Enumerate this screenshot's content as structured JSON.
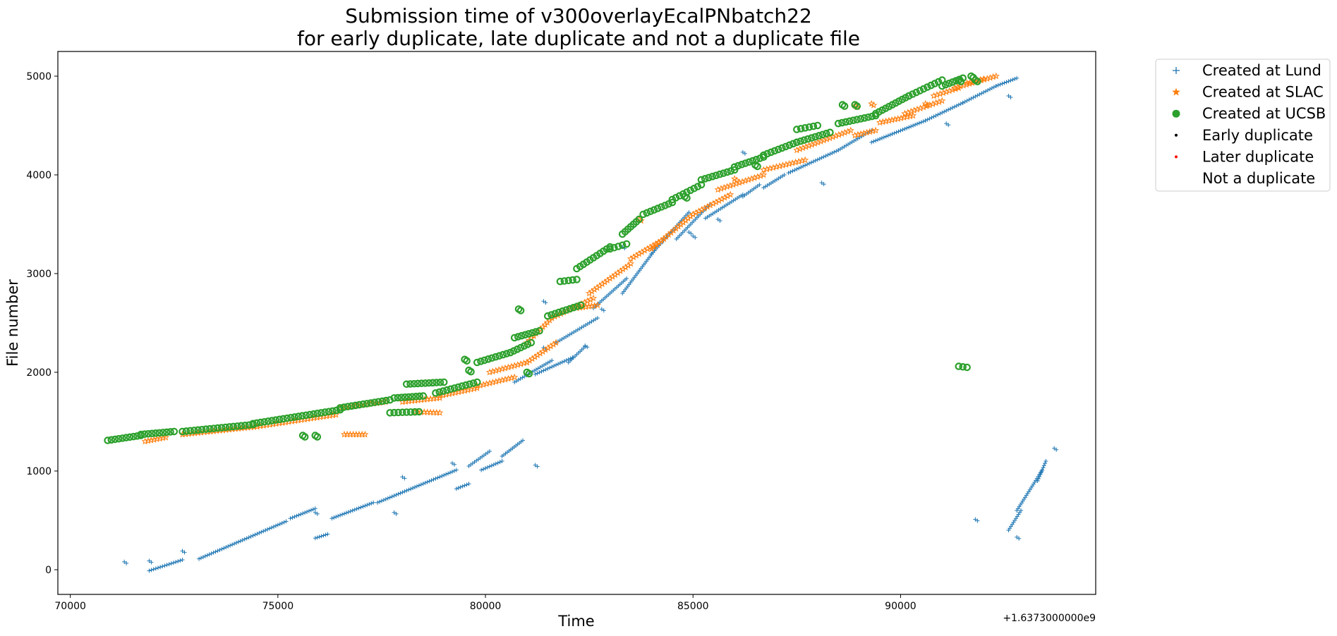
{
  "chart_data": {
    "type": "scatter",
    "title": [
      "Submission time of v300overlayEcalPNbatch22",
      "for early duplicate, late duplicate and not a duplicate file"
    ],
    "xlabel": "Time",
    "ylabel": "File number",
    "x_offset_label": "+1.6373000000e9",
    "xlim": [
      69700,
      94700
    ],
    "ylim": [
      -250,
      5250
    ],
    "xticks": [
      70000,
      75000,
      80000,
      85000,
      90000
    ],
    "yticks": [
      0,
      1000,
      2000,
      3000,
      4000,
      5000
    ],
    "grid": false,
    "legend_position": "outside-top-right",
    "legend": [
      {
        "label": "Created at Lund",
        "marker": "plus",
        "color": "#1f77b4"
      },
      {
        "label": "Created at SLAC",
        "marker": "star",
        "color": "#ff7f0e"
      },
      {
        "label": "Created at UCSB",
        "marker": "circle",
        "color": "#2ca02c"
      },
      {
        "label": "Early duplicate",
        "marker": "dot",
        "color": "#000000"
      },
      {
        "label": "Later duplicate",
        "marker": "dot",
        "color": "#ff0000"
      },
      {
        "label": "Not a duplicate",
        "marker": "none",
        "color": "#ffffff"
      }
    ],
    "series": [
      {
        "name": "Created at Lund",
        "marker": "plus",
        "color": "#1f77b4",
        "segments": [
          [
            [
              71900,
              -10
            ],
            [
              72700,
              100
            ]
          ],
          [
            [
              73100,
              110
            ],
            [
              75200,
              490
            ]
          ],
          [
            [
              75300,
              520
            ],
            [
              75900,
              620
            ]
          ],
          [
            [
              75900,
              320
            ],
            [
              76200,
              360
            ]
          ],
          [
            [
              76300,
              520
            ],
            [
              77300,
              680
            ]
          ],
          [
            [
              77400,
              680
            ],
            [
              79300,
              1010
            ]
          ],
          [
            [
              79300,
              820
            ],
            [
              79600,
              870
            ]
          ],
          [
            [
              79600,
              1050
            ],
            [
              80100,
              1200
            ]
          ],
          [
            [
              79900,
              1010
            ],
            [
              80400,
              1100
            ]
          ],
          [
            [
              80400,
              1150
            ],
            [
              80900,
              1310
            ]
          ],
          [
            [
              80700,
              1900
            ],
            [
              81600,
              2120
            ]
          ],
          [
            [
              81200,
              1980
            ],
            [
              82100,
              2150
            ]
          ],
          [
            [
              81700,
              2300
            ],
            [
              82700,
              2550
            ]
          ],
          [
            [
              82000,
              2100
            ],
            [
              82400,
              2260
            ]
          ],
          [
            [
              82600,
              2650
            ],
            [
              83400,
              2950
            ]
          ],
          [
            [
              83300,
              2800
            ],
            [
              84100,
              3250
            ]
          ],
          [
            [
              84000,
              3200
            ],
            [
              84900,
              3620
            ]
          ],
          [
            [
              84600,
              3350
            ],
            [
              85400,
              3700
            ]
          ],
          [
            [
              85300,
              3560
            ],
            [
              86200,
              3800
            ]
          ],
          [
            [
              86200,
              3780
            ],
            [
              86600,
              3900
            ]
          ],
          [
            [
              86700,
              3870
            ],
            [
              87200,
              4000
            ]
          ],
          [
            [
              87300,
              4020
            ],
            [
              88500,
              4250
            ]
          ],
          [
            [
              88500,
              4250
            ],
            [
              89300,
              4450
            ]
          ],
          [
            [
              89300,
              4330
            ],
            [
              90600,
              4550
            ]
          ],
          [
            [
              90600,
              4550
            ],
            [
              91500,
              4730
            ]
          ],
          [
            [
              91500,
              4730
            ],
            [
              92300,
              4900
            ]
          ],
          [
            [
              92300,
              4900
            ],
            [
              92800,
              4980
            ]
          ],
          [
            [
              92600,
              400
            ],
            [
              92900,
              600
            ]
          ],
          [
            [
              92800,
              600
            ],
            [
              93400,
              1000
            ]
          ],
          [
            [
              93300,
              900
            ],
            [
              93500,
              1100
            ]
          ]
        ],
        "points": [
          [
            71300,
            80
          ],
          [
            71900,
            90
          ],
          [
            72700,
            190
          ],
          [
            75900,
            580
          ],
          [
            77800,
            580
          ],
          [
            78000,
            940
          ],
          [
            79200,
            1080
          ],
          [
            81200,
            1060
          ],
          [
            81400,
            2250
          ],
          [
            81400,
            2720
          ],
          [
            82400,
            2270
          ],
          [
            82800,
            2640
          ],
          [
            83300,
            3270
          ],
          [
            84900,
            3420
          ],
          [
            85000,
            3380
          ],
          [
            85600,
            3550
          ],
          [
            86200,
            4230
          ],
          [
            88100,
            3920
          ],
          [
            91100,
            4520
          ],
          [
            91800,
            510
          ],
          [
            92600,
            4800
          ],
          [
            92800,
            330
          ],
          [
            93700,
            1230
          ]
        ]
      },
      {
        "name": "Created at SLAC",
        "marker": "star",
        "color": "#ff7f0e",
        "segments": [
          [
            [
              71800,
              1300
            ],
            [
              72300,
              1340
            ]
          ],
          [
            [
              72700,
              1370
            ],
            [
              74500,
              1450
            ]
          ],
          [
            [
              74500,
              1450
            ],
            [
              76400,
              1570
            ]
          ],
          [
            [
              76500,
              1640
            ],
            [
              77600,
              1700
            ]
          ],
          [
            [
              76600,
              1370
            ],
            [
              77100,
              1370
            ]
          ],
          [
            [
              78000,
              1700
            ],
            [
              78900,
              1740
            ]
          ],
          [
            [
              78300,
              1600
            ],
            [
              78900,
              1590
            ]
          ],
          [
            [
              78900,
              1760
            ],
            [
              79800,
              1840
            ]
          ],
          [
            [
              79800,
              1860
            ],
            [
              80700,
              1950
            ]
          ],
          [
            [
              80100,
              2000
            ],
            [
              81000,
              2100
            ]
          ],
          [
            [
              81000,
              2100
            ],
            [
              81700,
              2300
            ]
          ],
          [
            [
              81000,
              2300
            ],
            [
              81600,
              2550
            ]
          ],
          [
            [
              81600,
              2550
            ],
            [
              82600,
              2750
            ]
          ],
          [
            [
              82200,
              2650
            ],
            [
              82700,
              2680
            ]
          ],
          [
            [
              82500,
              2800
            ],
            [
              83500,
              3100
            ]
          ],
          [
            [
              83500,
              3150
            ],
            [
              84300,
              3350
            ]
          ],
          [
            [
              84000,
              3250
            ],
            [
              85000,
              3600
            ]
          ],
          [
            [
              85000,
              3600
            ],
            [
              85900,
              3800
            ]
          ],
          [
            [
              85600,
              3850
            ],
            [
              86700,
              4000
            ]
          ],
          [
            [
              86700,
              4050
            ],
            [
              87700,
              4150
            ]
          ],
          [
            [
              87500,
              4250
            ],
            [
              88800,
              4450
            ]
          ],
          [
            [
              88900,
              4400
            ],
            [
              89400,
              4450
            ]
          ],
          [
            [
              89500,
              4530
            ],
            [
              90300,
              4600
            ]
          ],
          [
            [
              90100,
              4620
            ],
            [
              91000,
              4750
            ]
          ],
          [
            [
              90800,
              4800
            ],
            [
              91400,
              4880
            ]
          ],
          [
            [
              91300,
              4880
            ],
            [
              92300,
              5000
            ]
          ],
          [
            [
              91600,
              4930
            ],
            [
              92000,
              4970
            ]
          ]
        ],
        "points": [
          [
            83700,
            3550
          ],
          [
            86000,
            3960
          ],
          [
            88900,
            4700
          ],
          [
            89300,
            4720
          ],
          [
            90600,
            4720
          ]
        ]
      },
      {
        "name": "Created at UCSB",
        "marker": "circle",
        "color": "#2ca02c",
        "segments": [
          [
            [
              70900,
              1310
            ],
            [
              71700,
              1360
            ]
          ],
          [
            [
              71700,
              1370
            ],
            [
              72500,
              1400
            ]
          ],
          [
            [
              72700,
              1400
            ],
            [
              74400,
              1470
            ]
          ],
          [
            [
              74400,
              1480
            ],
            [
              76500,
              1620
            ]
          ],
          [
            [
              76500,
              1640
            ],
            [
              77700,
              1720
            ]
          ],
          [
            [
              77800,
              1740
            ],
            [
              78500,
              1760
            ]
          ],
          [
            [
              77700,
              1590
            ],
            [
              78400,
              1600
            ]
          ],
          [
            [
              78100,
              1880
            ],
            [
              79000,
              1900
            ]
          ],
          [
            [
              78800,
              1790
            ],
            [
              79800,
              1900
            ]
          ],
          [
            [
              79800,
              2100
            ],
            [
              80600,
              2200
            ]
          ],
          [
            [
              80600,
              2200
            ],
            [
              81100,
              2300
            ]
          ],
          [
            [
              80700,
              2350
            ],
            [
              81300,
              2420
            ]
          ],
          [
            [
              81500,
              2570
            ],
            [
              82300,
              2680
            ]
          ],
          [
            [
              81800,
              2920
            ],
            [
              82200,
              2940
            ]
          ],
          [
            [
              82200,
              3050
            ],
            [
              83000,
              3270
            ]
          ],
          [
            [
              83000,
              3250
            ],
            [
              83400,
              3300
            ]
          ],
          [
            [
              83300,
              3400
            ],
            [
              83700,
              3550
            ]
          ],
          [
            [
              83800,
              3600
            ],
            [
              84500,
              3720
            ]
          ],
          [
            [
              84500,
              3750
            ],
            [
              85200,
              3900
            ]
          ],
          [
            [
              85200,
              3950
            ],
            [
              86000,
              4050
            ]
          ],
          [
            [
              86000,
              4080
            ],
            [
              86700,
              4180
            ]
          ],
          [
            [
              86700,
              4200
            ],
            [
              87500,
              4330
            ]
          ],
          [
            [
              87500,
              4330
            ],
            [
              88300,
              4430
            ]
          ],
          [
            [
              87500,
              4460
            ],
            [
              88000,
              4500
            ]
          ],
          [
            [
              88500,
              4520
            ],
            [
              89400,
              4600
            ]
          ],
          [
            [
              89400,
              4620
            ],
            [
              90200,
              4800
            ]
          ],
          [
            [
              90200,
              4800
            ],
            [
              91000,
              4960
            ]
          ],
          [
            [
              91000,
              4900
            ],
            [
              91500,
              4980
            ]
          ],
          [
            [
              91400,
              2060
            ],
            [
              91600,
              2050
            ]
          ]
        ],
        "points": [
          [
            75600,
            1360
          ],
          [
            75900,
            1360
          ],
          [
            80800,
            2640
          ],
          [
            79500,
            2130
          ],
          [
            79600,
            2020
          ],
          [
            81000,
            2000
          ],
          [
            84800,
            3780
          ],
          [
            86500,
            4100
          ],
          [
            88600,
            4710
          ],
          [
            88900,
            4710
          ],
          [
            91400,
            4960
          ],
          [
            91800,
            4960
          ],
          [
            91700,
            5000
          ]
        ]
      },
      {
        "name": "Early duplicate",
        "marker": "dot",
        "color": "#000000",
        "segments": [],
        "points": []
      },
      {
        "name": "Later duplicate",
        "marker": "dot",
        "color": "#ff0000",
        "segments": [],
        "points": []
      },
      {
        "name": "Not a duplicate",
        "marker": "none",
        "color": "#ffffff",
        "segments": [],
        "points": []
      }
    ]
  }
}
